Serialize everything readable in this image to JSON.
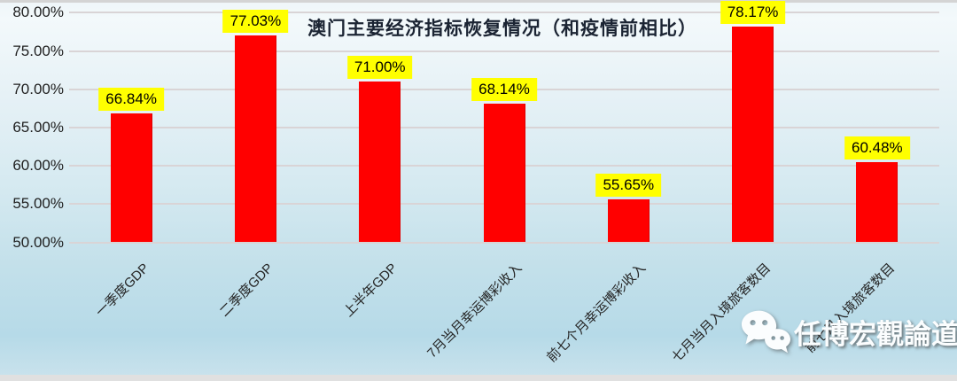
{
  "chart_data": {
    "type": "bar",
    "title": "澳门主要经济指标恢复情况（和疫情前相比）",
    "categories": [
      "一季度GDP",
      "二季度GDP",
      "上半年GDP",
      "7月当月幸运博彩收入",
      "前七个月幸运博彩收入",
      "七月当月入境旅客数目",
      "前七月入境旅客数目"
    ],
    "values": [
      66.84,
      77.03,
      71.0,
      68.14,
      55.65,
      78.17,
      60.48
    ],
    "value_labels": [
      "66.84%",
      "77.03%",
      "71.00%",
      "68.14%",
      "55.65%",
      "78.17%",
      "60.48%"
    ],
    "xlabel": "",
    "ylabel": "",
    "ylim": [
      50,
      80
    ],
    "y_ticks": [
      {
        "value": 80,
        "label": "80.00%"
      },
      {
        "value": 75,
        "label": "75.00%"
      },
      {
        "value": 70,
        "label": "70.00%"
      },
      {
        "value": 65,
        "label": "65.00%"
      },
      {
        "value": 60,
        "label": "60.00%"
      },
      {
        "value": 55,
        "label": "55.00%"
      },
      {
        "value": 50,
        "label": "50.00%"
      }
    ],
    "grid": true,
    "legend": "none",
    "colors": {
      "bar": "#FF0000",
      "value_label_bg": "#FFFF00",
      "value_label_text": "#000000",
      "gridline": "#D9D4D6",
      "axis_text": "#1F1F1F",
      "title_text": "#1B2433"
    }
  },
  "watermark": {
    "text": "任博宏觀論道",
    "icon": "wechat-icon"
  }
}
